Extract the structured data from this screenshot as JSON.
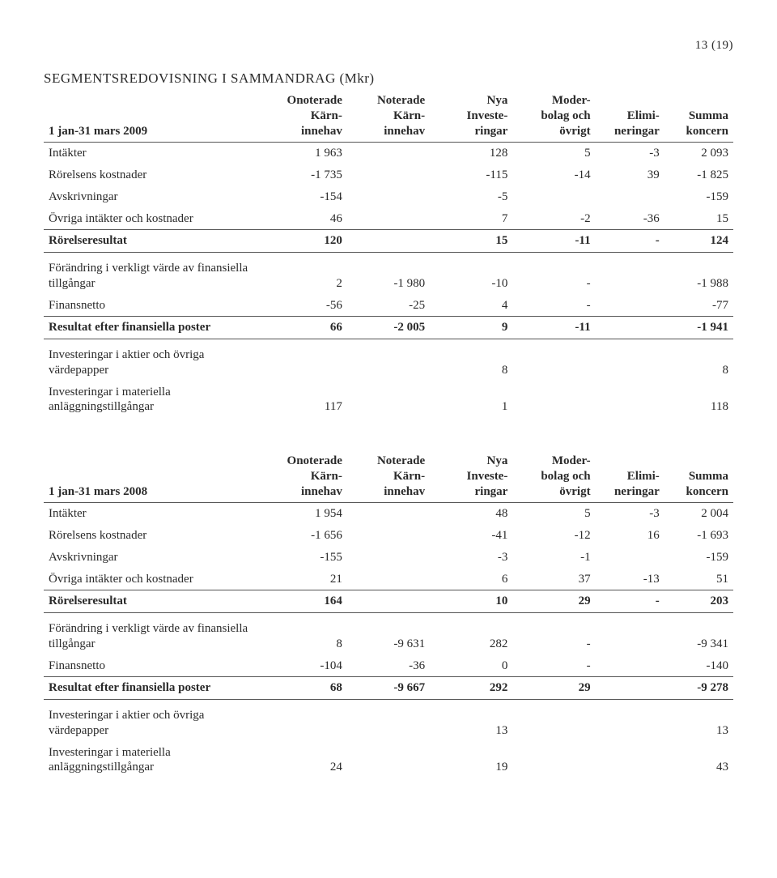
{
  "page_number": "13 (19)",
  "title": "SEGMENTSREDOVISNING I SAMMANDRAG (Mkr)",
  "columns": {
    "c1": "Onoterade\nKärn-\ninnehav",
    "c2": "Noterade\nKärn-\ninnehav",
    "c3": "Nya\nInveste-\nringar",
    "c4": "Moder-\nbolag och\növrigt",
    "c5": "Elimi-\nneringar",
    "c6": "Summa\nkoncern"
  },
  "table1": {
    "period": "1 jan-31 mars 2009",
    "rows": [
      {
        "label": "Intäkter",
        "c1": "1 963",
        "c2": "",
        "c3": "128",
        "c4": "5",
        "c5": "-3",
        "c6": "2 093",
        "underline": false
      },
      {
        "label": "Rörelsens kostnader",
        "c1": "-1 735",
        "c2": "",
        "c3": "-115",
        "c4": "-14",
        "c5": "39",
        "c6": "-1 825",
        "underline": false
      },
      {
        "label": "Avskrivningar",
        "c1": "-154",
        "c2": "",
        "c3": "-5",
        "c4": "",
        "c5": "",
        "c6": "-159",
        "underline": false
      },
      {
        "label": "Övriga intäkter och kostnader",
        "c1": "46",
        "c2": "",
        "c3": "7",
        "c4": "-2",
        "c5": "-36",
        "c6": "15",
        "underline": true
      },
      {
        "label": "Rörelseresultat",
        "c1": "120",
        "c2": "",
        "c3": "15",
        "c4": "-11",
        "c5": "-",
        "c6": "124",
        "bold": true,
        "underline": true
      },
      {
        "label": "Förändring i verkligt värde av finansiella tillgångar",
        "c1": "2",
        "c2": "-1 980",
        "c3": "-10",
        "c4": "-",
        "c5": "",
        "c6": "-1 988",
        "spacer": true
      },
      {
        "label": "Finansnetto",
        "c1": "-56",
        "c2": "-25",
        "c3": "4",
        "c4": "-",
        "c5": "",
        "c6": "-77",
        "underline": true
      },
      {
        "label": "Resultat efter finansiella poster",
        "c1": "66",
        "c2": "-2 005",
        "c3": "9",
        "c4": "-11",
        "c5": "",
        "c6": "-1 941",
        "bold": true,
        "underline": true
      },
      {
        "label": "Investeringar i aktier och övriga värdepapper",
        "c1": "",
        "c2": "",
        "c3": "8",
        "c4": "",
        "c5": "",
        "c6": "8",
        "spacer": true
      },
      {
        "label": "Investeringar i materiella anläggningstillgångar",
        "c1": "117",
        "c2": "",
        "c3": "1",
        "c4": "",
        "c5": "",
        "c6": "118"
      }
    ]
  },
  "table2": {
    "period": "1 jan-31 mars 2008",
    "rows": [
      {
        "label": "Intäkter",
        "c1": "1 954",
        "c2": "",
        "c3": "48",
        "c4": "5",
        "c5": "-3",
        "c6": "2 004",
        "underline": false
      },
      {
        "label": "Rörelsens kostnader",
        "c1": "-1 656",
        "c2": "",
        "c3": "-41",
        "c4": "-12",
        "c5": "16",
        "c6": "-1 693",
        "underline": false
      },
      {
        "label": "Avskrivningar",
        "c1": "-155",
        "c2": "",
        "c3": "-3",
        "c4": "-1",
        "c5": "",
        "c6": "-159",
        "underline": false
      },
      {
        "label": "Övriga intäkter och kostnader",
        "c1": "21",
        "c2": "",
        "c3": "6",
        "c4": "37",
        "c5": "-13",
        "c6": "51",
        "underline": true
      },
      {
        "label": "Rörelseresultat",
        "c1": "164",
        "c2": "",
        "c3": "10",
        "c4": "29",
        "c5": "-",
        "c6": "203",
        "bold": true,
        "underline": true
      },
      {
        "label": "Förändring i verkligt värde av finansiella tillgångar",
        "c1": "8",
        "c2": "-9 631",
        "c3": "282",
        "c4": "-",
        "c5": "",
        "c6": "-9 341",
        "spacer": true
      },
      {
        "label": "Finansnetto",
        "c1": "-104",
        "c2": "-36",
        "c3": "0",
        "c4": "-",
        "c5": "",
        "c6": "-140",
        "underline": true
      },
      {
        "label": "Resultat efter finansiella poster",
        "c1": "68",
        "c2": "-9 667",
        "c3": "292",
        "c4": "29",
        "c5": "",
        "c6": "-9 278",
        "bold": true,
        "underline": true
      },
      {
        "label": "Investeringar i aktier och övriga värdepapper",
        "c1": "",
        "c2": "",
        "c3": "13",
        "c4": "",
        "c5": "",
        "c6": "13",
        "spacer": true
      },
      {
        "label": "Investeringar i materiella anläggningstillgångar",
        "c1": "24",
        "c2": "",
        "c3": "19",
        "c4": "",
        "c5": "",
        "c6": "43"
      }
    ]
  }
}
